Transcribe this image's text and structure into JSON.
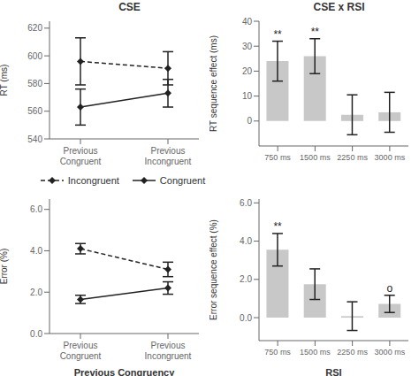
{
  "chart_data": [
    {
      "type": "line",
      "title": "CSE",
      "y_label": "RT (ms)",
      "categories": [
        "Previous\nCongruent",
        "Previous\nIncongruent"
      ],
      "ylim": [
        540,
        625
      ],
      "yticks": [
        540,
        560,
        580,
        600,
        620
      ],
      "series": [
        {
          "name": "Incongruent",
          "color": "#222222",
          "values": [
            596,
            591
          ],
          "errors": [
            17,
            12
          ],
          "line_style": "dashed",
          "marker": "diamond"
        },
        {
          "name": "Congruent",
          "color": "#222222",
          "values": [
            563,
            573
          ],
          "errors": [
            13,
            10
          ],
          "line_style": "solid",
          "marker": "diamond"
        }
      ]
    },
    {
      "type": "bar",
      "title": "CSE x RSI",
      "y_label": "RT sequence effect (ms)",
      "categories": [
        "750 ms",
        "1500 ms",
        "2250 ms",
        "3000 ms"
      ],
      "values": [
        24,
        26,
        2.5,
        3.5
      ],
      "errors": [
        8,
        7,
        8,
        8
      ],
      "color": "#c8c8c8",
      "ylim": [
        -10,
        40
      ],
      "yticks": [
        0,
        10,
        20,
        30,
        40
      ],
      "annotations": [
        {
          "category": "750 ms",
          "text": "**"
        },
        {
          "category": "1500 ms",
          "text": "**"
        }
      ]
    },
    {
      "type": "line",
      "x_label": "Previous Congruency",
      "y_label": "Error (%)",
      "categories": [
        "Previous\nCongruent",
        "Previous\nIncongruent"
      ],
      "ylim": [
        0.0,
        6.5
      ],
      "yticks": [
        {
          "value": 0,
          "label": "0.0"
        },
        {
          "value": 2,
          "label": "2.0"
        },
        {
          "value": 4,
          "label": "4.0"
        },
        {
          "value": 6,
          "label": "6.0"
        }
      ],
      "legend": "top",
      "series": [
        {
          "name": "Incongruent",
          "color": "#222222",
          "values": [
            4.1,
            3.1
          ],
          "errors": [
            0.25,
            0.35
          ],
          "line_style": "dashed",
          "marker": "diamond"
        },
        {
          "name": "Congruent",
          "color": "#222222",
          "values": [
            1.65,
            2.2
          ],
          "errors": [
            0.2,
            0.3
          ],
          "line_style": "solid",
          "marker": "diamond"
        }
      ]
    },
    {
      "type": "bar",
      "x_label": "RSI",
      "y_label": "Error sequence effect (%)",
      "categories": [
        "750 ms",
        "1500 ms",
        "2250 ms",
        "3000 ms"
      ],
      "values": [
        3.55,
        1.75,
        0.08,
        0.72
      ],
      "errors": [
        0.85,
        0.8,
        0.75,
        0.45
      ],
      "color": "#c8c8c8",
      "ylim": [
        -1.2,
        6.2
      ],
      "yticks": [
        {
          "value": 0,
          "label": "0.0"
        },
        {
          "value": 2,
          "label": "2.0"
        },
        {
          "value": 4,
          "label": "4.0"
        },
        {
          "value": 6,
          "label": "6.0"
        }
      ],
      "annotations": [
        {
          "category": "750 ms",
          "text": "**"
        },
        {
          "category": "3000 ms",
          "text": "o"
        }
      ]
    }
  ]
}
